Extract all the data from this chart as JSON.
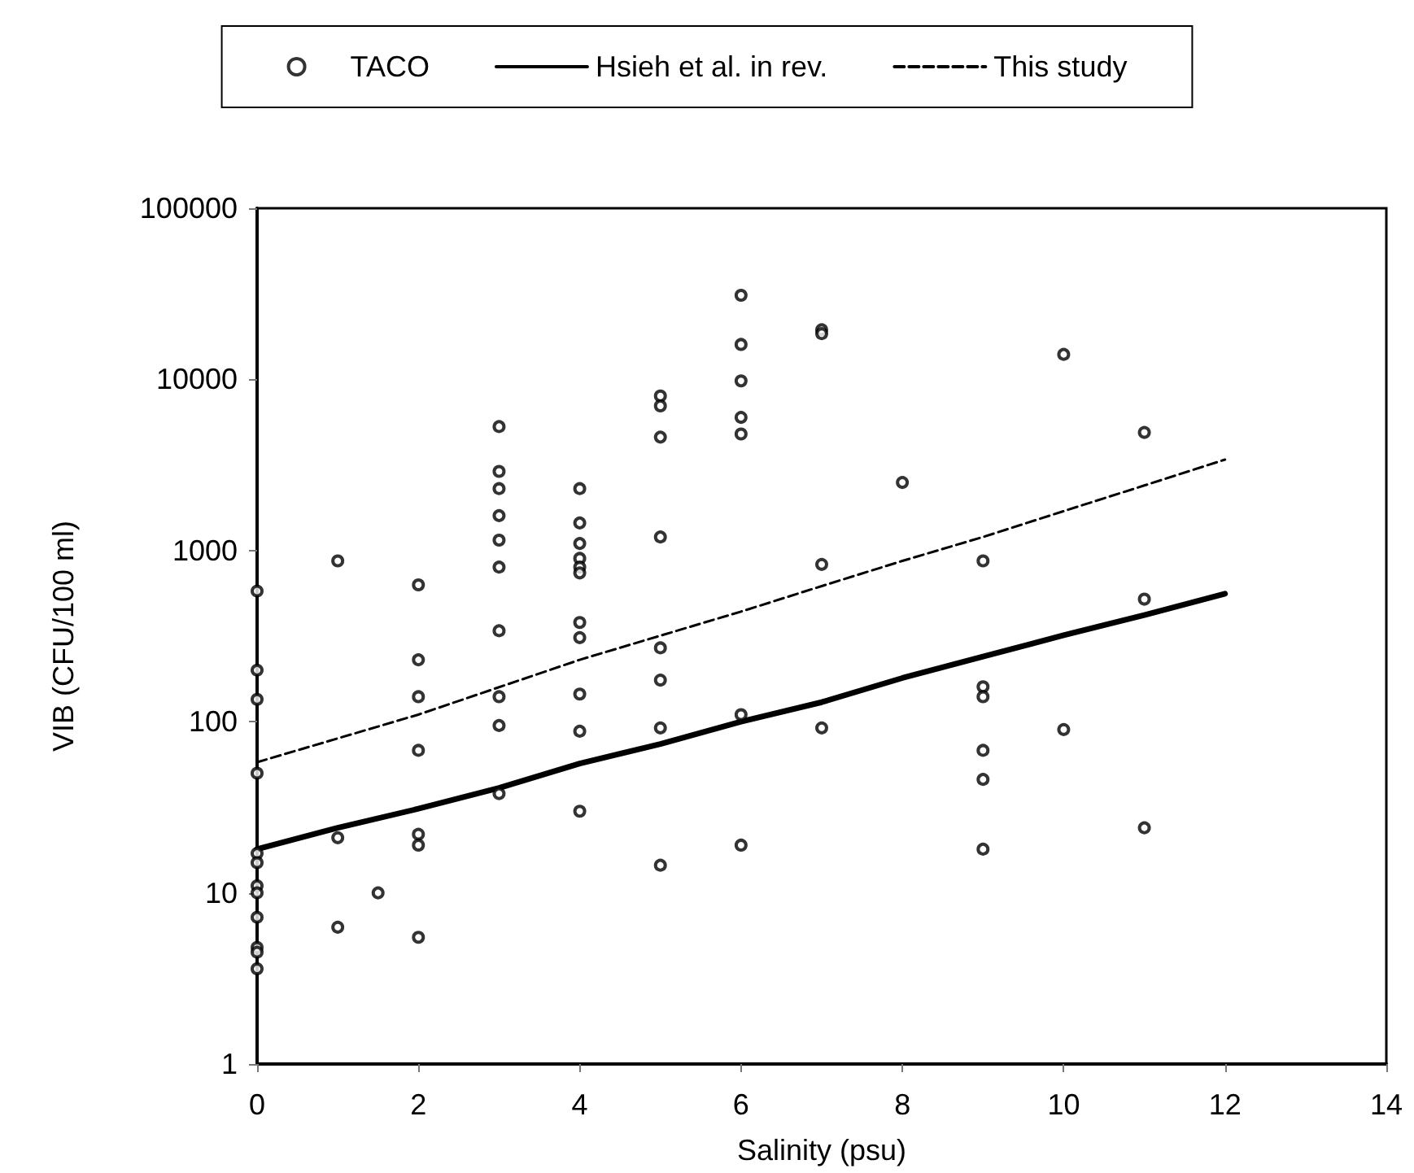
{
  "chart_data": {
    "type": "scatter",
    "xlabel": "Salinity (psu)",
    "ylabel": "VIB (CFU/100 ml)",
    "log": "y",
    "grid": false,
    "legend": "top",
    "marker": "circle",
    "xlim": [
      0,
      14
    ],
    "xticks": [
      0,
      2,
      4,
      6,
      8,
      10,
      12,
      14
    ],
    "ylim": [
      1,
      100000
    ],
    "yticks": [
      1,
      10,
      100,
      1000,
      10000,
      100000
    ],
    "series": [
      {
        "name": "TACO",
        "color": "#000000",
        "x": [
          0,
          0,
          0,
          0,
          0,
          0,
          0,
          0,
          0,
          0,
          0,
          0,
          1,
          1,
          1,
          1.5,
          2,
          2,
          2,
          2,
          2,
          2,
          2,
          3,
          3,
          3,
          3,
          3,
          3,
          3,
          3,
          3,
          3,
          4,
          4,
          4,
          4,
          4,
          4,
          4,
          4,
          4,
          4,
          4,
          5,
          5,
          5,
          5,
          5,
          5,
          5,
          5,
          6,
          6,
          6,
          6,
          6,
          6,
          6,
          7,
          7,
          7,
          7,
          8,
          9,
          9,
          9,
          9,
          9,
          9,
          10,
          10,
          11,
          11,
          11
        ],
        "values": [
          580,
          200,
          135,
          50,
          17,
          15,
          11,
          10,
          7.2,
          4.8,
          4.5,
          3.6,
          870,
          21,
          6.3,
          10,
          630,
          230,
          140,
          68,
          22,
          19,
          5.5,
          5300,
          2900,
          2300,
          1600,
          1150,
          800,
          340,
          140,
          95,
          38,
          2300,
          1450,
          1100,
          900,
          800,
          740,
          380,
          310,
          145,
          88,
          30,
          8000,
          7000,
          4600,
          1200,
          270,
          175,
          92,
          14.5,
          31000,
          16000,
          9800,
          6000,
          4800,
          110,
          19,
          19500,
          18500,
          830,
          92,
          2500,
          870,
          160,
          140,
          68,
          46,
          18,
          14000,
          90,
          4900,
          520,
          24
        ]
      },
      {
        "name": "Hsieh et al. in rev.",
        "type": "line",
        "color": "#000000",
        "marker": "none",
        "line_style": "solid",
        "x": [
          0,
          1,
          2,
          3,
          4,
          5,
          6,
          7,
          8,
          9,
          10,
          11,
          12
        ],
        "values": [
          18,
          24,
          31,
          41,
          57,
          74,
          100,
          130,
          180,
          240,
          320,
          420,
          560
        ]
      },
      {
        "name": "This study",
        "type": "line",
        "color": "#000000",
        "marker": "none",
        "line_style": "dashed",
        "x": [
          0,
          2,
          4,
          6,
          7,
          8,
          9,
          10,
          11,
          12
        ],
        "values": [
          58,
          110,
          230,
          440,
          620,
          870,
          1200,
          1700,
          2400,
          3400
        ]
      }
    ]
  }
}
